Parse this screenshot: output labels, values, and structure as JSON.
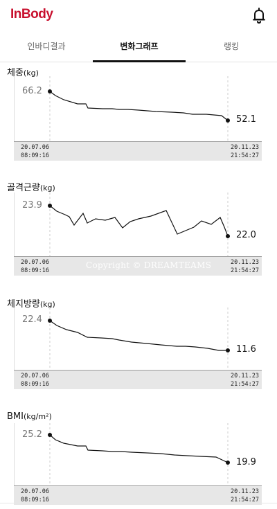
{
  "header": {
    "logo": "InBody",
    "icons": [
      "bell-icon"
    ]
  },
  "tabs": [
    {
      "label": "인바디결과",
      "active": false
    },
    {
      "label": "변화그래프",
      "active": true
    },
    {
      "label": "랭킹",
      "active": false
    }
  ],
  "watermark": "Copyright © DREAMTEAMS",
  "charts": [
    {
      "title": "체중",
      "unit": "(kg)",
      "start_value": "66.2",
      "end_value": "52.1",
      "start_date": "20.07.06",
      "start_time": "08:09:16",
      "end_date": "20.11.23",
      "end_time": "21:54:27"
    },
    {
      "title": "골격근량",
      "unit": "(kg)",
      "start_value": "23.9",
      "end_value": "22.0",
      "start_date": "20.07.06",
      "start_time": "08:09:16",
      "end_date": "20.11.23",
      "end_time": "21:54:27"
    },
    {
      "title": "체지방량",
      "unit": "(kg)",
      "start_value": "22.4",
      "end_value": "11.6",
      "start_date": "20.07.06",
      "start_time": "08:09:16",
      "end_date": "20.11.23",
      "end_time": "21:54:27"
    },
    {
      "title": "BMI",
      "unit": "(kg/m²)",
      "start_value": "25.2",
      "end_value": "19.9",
      "start_date": "20.07.06",
      "start_time": "08:09:16",
      "end_date": "20.11.23",
      "end_time": "21:54:27"
    }
  ]
}
